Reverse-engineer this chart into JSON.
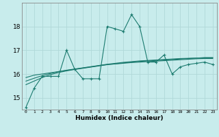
{
  "title": "",
  "xlabel": "Humidex (Indice chaleur)",
  "background_color": "#c8ecec",
  "grid_color": "#b0d8d8",
  "line_color": "#1a7a6e",
  "x_values": [
    0,
    1,
    2,
    3,
    4,
    5,
    6,
    7,
    8,
    9,
    10,
    11,
    12,
    13,
    14,
    15,
    16,
    17,
    18,
    19,
    20,
    21,
    22,
    23
  ],
  "main_series": [
    14.6,
    15.4,
    15.9,
    15.9,
    15.9,
    17.0,
    16.2,
    15.8,
    15.8,
    15.8,
    18.0,
    17.9,
    17.8,
    18.5,
    18.0,
    16.5,
    16.5,
    16.8,
    16.0,
    16.3,
    16.4,
    16.45,
    16.5,
    16.4
  ],
  "trend1": [
    15.85,
    15.95,
    16.0,
    16.05,
    16.1,
    16.15,
    16.2,
    16.25,
    16.3,
    16.35,
    16.4,
    16.42,
    16.45,
    16.48,
    16.5,
    16.52,
    16.54,
    16.56,
    16.58,
    16.6,
    16.62,
    16.64,
    16.65,
    16.65
  ],
  "trend2": [
    15.7,
    15.82,
    15.93,
    16.02,
    16.1,
    16.16,
    16.21,
    16.26,
    16.31,
    16.36,
    16.41,
    16.45,
    16.49,
    16.52,
    16.55,
    16.57,
    16.59,
    16.61,
    16.63,
    16.65,
    16.66,
    16.67,
    16.68,
    16.68
  ],
  "trend3": [
    15.55,
    15.7,
    15.85,
    15.97,
    16.06,
    16.13,
    16.19,
    16.24,
    16.29,
    16.34,
    16.39,
    16.43,
    16.47,
    16.5,
    16.53,
    16.55,
    16.57,
    16.59,
    16.61,
    16.63,
    16.65,
    16.67,
    16.69,
    16.69
  ],
  "ylim": [
    14.5,
    19.0
  ],
  "yticks": [
    15,
    16,
    17,
    18
  ],
  "xticks": [
    0,
    1,
    2,
    3,
    4,
    5,
    6,
    7,
    8,
    9,
    10,
    11,
    12,
    13,
    14,
    15,
    16,
    17,
    18,
    19,
    20,
    21,
    22,
    23
  ]
}
